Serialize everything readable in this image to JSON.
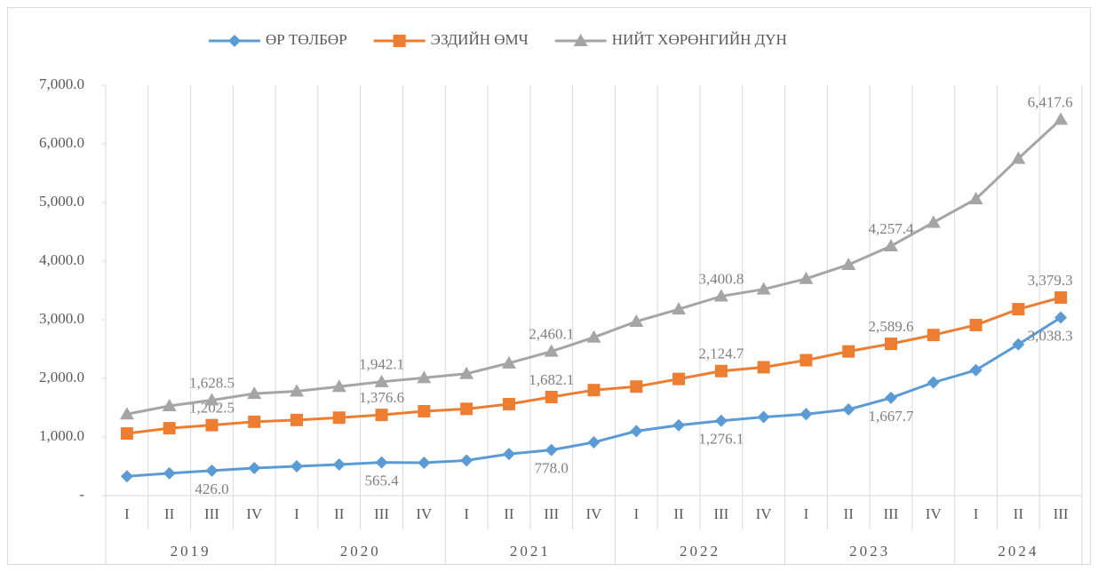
{
  "chart_data": {
    "type": "line",
    "categories": [
      "I",
      "II",
      "III",
      "IV",
      "I",
      "II",
      "III",
      "IV",
      "I",
      "II",
      "III",
      "IV",
      "I",
      "II",
      "III",
      "IV",
      "I",
      "II",
      "III",
      "IV",
      "I",
      "II",
      "III"
    ],
    "groups": [
      {
        "label": "2019",
        "span": 4
      },
      {
        "label": "2020",
        "span": 4
      },
      {
        "label": "2021",
        "span": 4
      },
      {
        "label": "2022",
        "span": 4
      },
      {
        "label": "2023",
        "span": 4
      },
      {
        "label": "2024",
        "span": 3
      }
    ],
    "series": [
      {
        "name": "ӨР ТӨЛБӨР",
        "color": "#5b9bd5",
        "marker": "diamond",
        "label_position": "below",
        "values": [
          330,
          380,
          426.0,
          470,
          500,
          530,
          565.4,
          560,
          600,
          710,
          778.0,
          910,
          1100,
          1200,
          1276.1,
          1340,
          1390,
          1470,
          1667.7,
          1930,
          2140,
          2580,
          3038.3
        ],
        "value_labels": [
          null,
          null,
          "426.0",
          null,
          null,
          null,
          "565.4",
          null,
          null,
          null,
          "778.0",
          null,
          null,
          null,
          "1,276.1",
          null,
          null,
          null,
          "1,667.7",
          null,
          null,
          null,
          "3,038.3"
        ]
      },
      {
        "name": "ЭЗДИЙН ӨМЧ",
        "color": "#ed7d31",
        "marker": "square",
        "label_position": "above",
        "values": [
          1060,
          1150,
          1202.5,
          1260,
          1290,
          1330,
          1376.6,
          1440,
          1480,
          1560,
          1682.1,
          1800,
          1860,
          1990,
          2124.7,
          2190,
          2310,
          2460,
          2589.6,
          2740,
          2910,
          3180,
          3379.3
        ],
        "value_labels": [
          null,
          null,
          "1,202.5",
          null,
          null,
          null,
          "1,376.6",
          null,
          null,
          null,
          "1,682.1",
          null,
          null,
          null,
          "2,124.7",
          null,
          null,
          null,
          "2,589.6",
          null,
          null,
          null,
          "3,379.3"
        ]
      },
      {
        "name": "НИЙТ ХӨРӨНГИЙН ДҮН",
        "color": "#a5a5a5",
        "marker": "triangle",
        "label_position": "above",
        "values": [
          1390,
          1530,
          1628.5,
          1740,
          1780,
          1860,
          1942.1,
          2010,
          2080,
          2260,
          2460.1,
          2700,
          2970,
          3180,
          3400.8,
          3520,
          3700,
          3940,
          4257.4,
          4660,
          5060,
          5750,
          6417.6
        ],
        "value_labels": [
          null,
          null,
          "1,628.5",
          null,
          null,
          null,
          "1,942.1",
          null,
          null,
          null,
          "2,460.1",
          null,
          null,
          null,
          "3,400.8",
          null,
          null,
          null,
          "4,257.4",
          null,
          null,
          null,
          "6,417.6"
        ]
      }
    ],
    "ylim": [
      0,
      7000
    ],
    "yticks": [
      {
        "value": 0,
        "label": "-"
      },
      {
        "value": 1000,
        "label": "1,000.0"
      },
      {
        "value": 2000,
        "label": "2,000.0"
      },
      {
        "value": 3000,
        "label": "3,000.0"
      },
      {
        "value": 4000,
        "label": "4,000.0"
      },
      {
        "value": 5000,
        "label": "5,000.0"
      },
      {
        "value": 6000,
        "label": "6,000.0"
      },
      {
        "value": 7000,
        "label": "7,000.0"
      }
    ],
    "legend": "top"
  }
}
